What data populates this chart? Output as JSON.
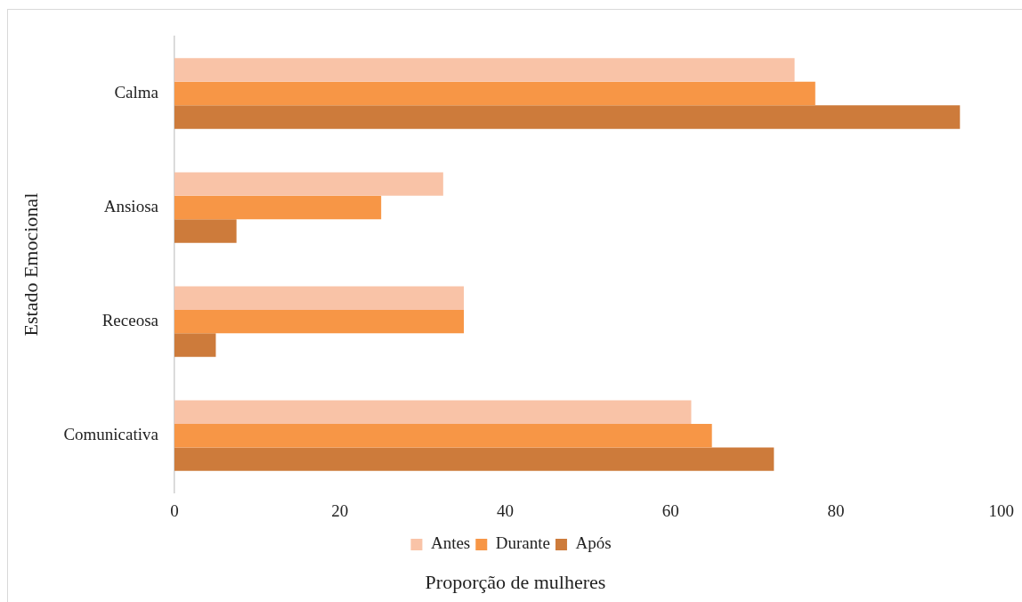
{
  "chart_data": {
    "type": "bar",
    "orientation": "horizontal",
    "xlabel": "Proporção de mulheres",
    "ylabel": "Estado Emocional",
    "categories": [
      "Calma",
      "Ansiosa",
      "Receosa",
      "Comunicativa"
    ],
    "series": [
      {
        "name": "Antes",
        "color": "#f9c3a7",
        "values": [
          75,
          32.5,
          35,
          62.5
        ]
      },
      {
        "name": "Durante",
        "color": "#f79646",
        "values": [
          77.5,
          25,
          35,
          65
        ]
      },
      {
        "name": "Após",
        "color": "#cd7b3b",
        "values": [
          95,
          7.5,
          5,
          72.5
        ]
      }
    ],
    "xlim": [
      0,
      100
    ],
    "xticks": [
      0,
      20,
      40,
      60,
      80,
      100
    ],
    "grid": false,
    "legend": "bottom"
  }
}
